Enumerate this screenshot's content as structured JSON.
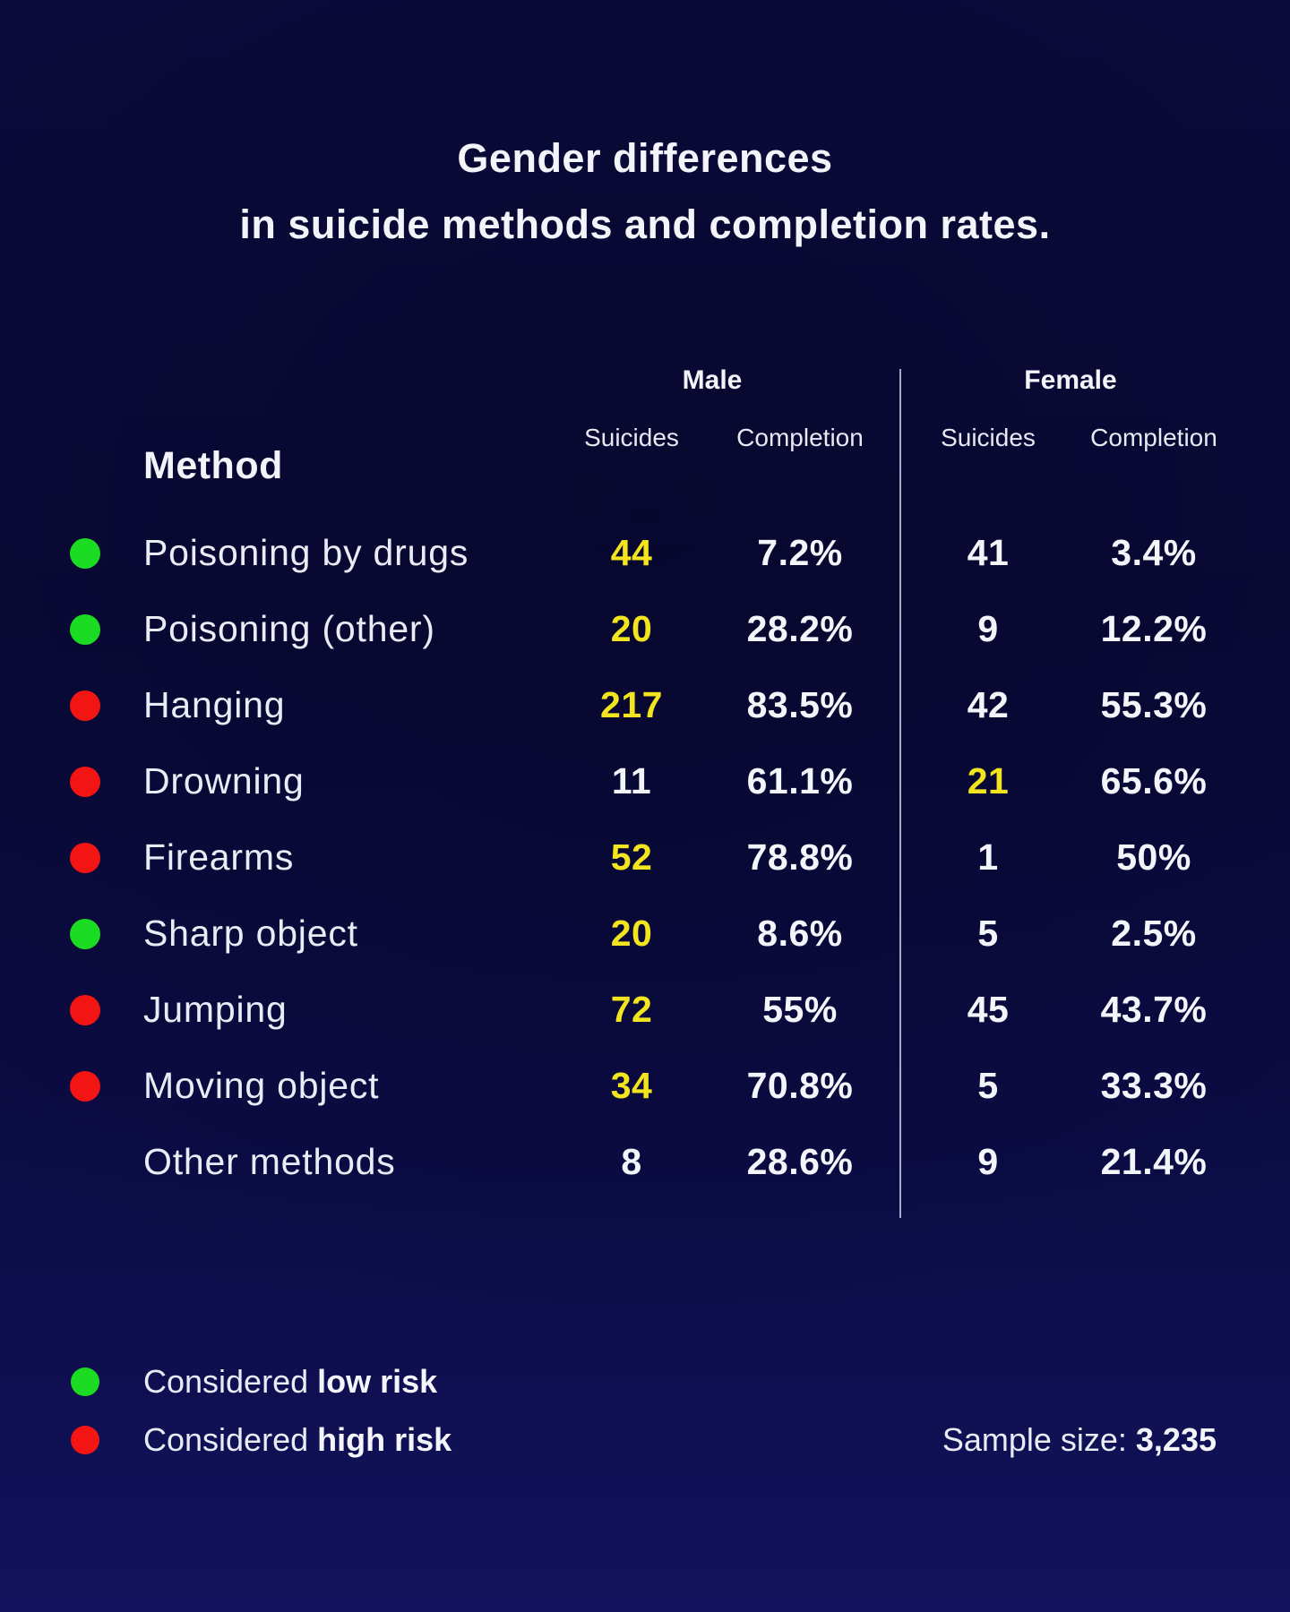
{
  "title": {
    "line1": "Gender differences",
    "line2": "in suicide methods and completion rates."
  },
  "table": {
    "method_header": "Method",
    "group_headers": {
      "male": "Male",
      "female": "Female"
    },
    "sub_headers": {
      "suicides": "Suicides",
      "completion": "Completion"
    },
    "rows": [
      {
        "method": "Poisoning by drugs",
        "risk": "low",
        "male": {
          "suicides": "44",
          "completion": "7.2%",
          "highlight": true
        },
        "female": {
          "suicides": "41",
          "completion": "3.4%",
          "highlight": false
        }
      },
      {
        "method": "Poisoning (other)",
        "risk": "low",
        "male": {
          "suicides": "20",
          "completion": "28.2%",
          "highlight": true
        },
        "female": {
          "suicides": "9",
          "completion": "12.2%",
          "highlight": false
        }
      },
      {
        "method": "Hanging",
        "risk": "high",
        "male": {
          "suicides": "217",
          "completion": "83.5%",
          "highlight": true
        },
        "female": {
          "suicides": "42",
          "completion": "55.3%",
          "highlight": false
        }
      },
      {
        "method": "Drowning",
        "risk": "high",
        "male": {
          "suicides": "11",
          "completion": "61.1%",
          "highlight": false
        },
        "female": {
          "suicides": "21",
          "completion": "65.6%",
          "highlight": true
        }
      },
      {
        "method": "Firearms",
        "risk": "high",
        "male": {
          "suicides": "52",
          "completion": "78.8%",
          "highlight": true
        },
        "female": {
          "suicides": "1",
          "completion": "50%",
          "highlight": false
        }
      },
      {
        "method": "Sharp object",
        "risk": "low",
        "male": {
          "suicides": "20",
          "completion": "8.6%",
          "highlight": true
        },
        "female": {
          "suicides": "5",
          "completion": "2.5%",
          "highlight": false
        }
      },
      {
        "method": "Jumping",
        "risk": "high",
        "male": {
          "suicides": "72",
          "completion": "55%",
          "highlight": true
        },
        "female": {
          "suicides": "45",
          "completion": "43.7%",
          "highlight": false
        }
      },
      {
        "method": "Moving object",
        "risk": "high",
        "male": {
          "suicides": "34",
          "completion": "70.8%",
          "highlight": true
        },
        "female": {
          "suicides": "5",
          "completion": "33.3%",
          "highlight": false
        }
      },
      {
        "method": "Other methods",
        "risk": "none",
        "male": {
          "suicides": "8",
          "completion": "28.6%",
          "highlight": false
        },
        "female": {
          "suicides": "9",
          "completion": "21.4%",
          "highlight": false
        }
      }
    ]
  },
  "legend": {
    "items": [
      {
        "risk": "low",
        "prefix": "Considered ",
        "bold_label": "low risk"
      },
      {
        "risk": "high",
        "prefix": "Considered ",
        "bold_label": "high risk"
      }
    ]
  },
  "footer": {
    "sample_label": "Sample size: ",
    "sample_value": "3,235"
  },
  "colors": {
    "low_risk_green": "#1bdc22",
    "high_risk_red": "#f31414",
    "highlight_yellow": "#f2e41f",
    "background_top": "#0a0a38",
    "background_bottom": "#12125c",
    "text_white": "#f4f5fa",
    "divider": "#cdd5e8"
  },
  "chart_data": {
    "type": "table",
    "title": "Gender differences in suicide methods and completion rates.",
    "columns": [
      "Method",
      "Male Suicides",
      "Male Completion",
      "Female Suicides",
      "Female Completion"
    ],
    "rows": [
      [
        "Poisoning by drugs",
        44,
        "7.2%",
        41,
        "3.4%"
      ],
      [
        "Poisoning (other)",
        20,
        "28.2%",
        9,
        "12.2%"
      ],
      [
        "Hanging",
        217,
        "83.5%",
        42,
        "55.3%"
      ],
      [
        "Drowning",
        11,
        "61.1%",
        21,
        "65.6%"
      ],
      [
        "Firearms",
        52,
        "78.8%",
        1,
        "50%"
      ],
      [
        "Sharp object",
        20,
        "8.6%",
        5,
        "2.5%"
      ],
      [
        "Jumping",
        72,
        "55%",
        45,
        "43.7%"
      ],
      [
        "Moving object",
        34,
        "70.8%",
        5,
        "33.3%"
      ],
      [
        "Other methods",
        8,
        "28.6%",
        9,
        "21.4%"
      ]
    ],
    "risk_classification": {
      "low_risk": [
        "Poisoning by drugs",
        "Poisoning (other)",
        "Sharp object"
      ],
      "high_risk": [
        "Hanging",
        "Drowning",
        "Firearms",
        "Jumping",
        "Moving object"
      ],
      "unclassified": [
        "Other methods"
      ]
    },
    "highlighted_suicide_counts": {
      "male": [
        44,
        20,
        217,
        52,
        20,
        72,
        34
      ],
      "female": [
        21
      ]
    },
    "sample_size": 3235,
    "legend": [
      "Considered low risk",
      "Considered high risk"
    ]
  }
}
